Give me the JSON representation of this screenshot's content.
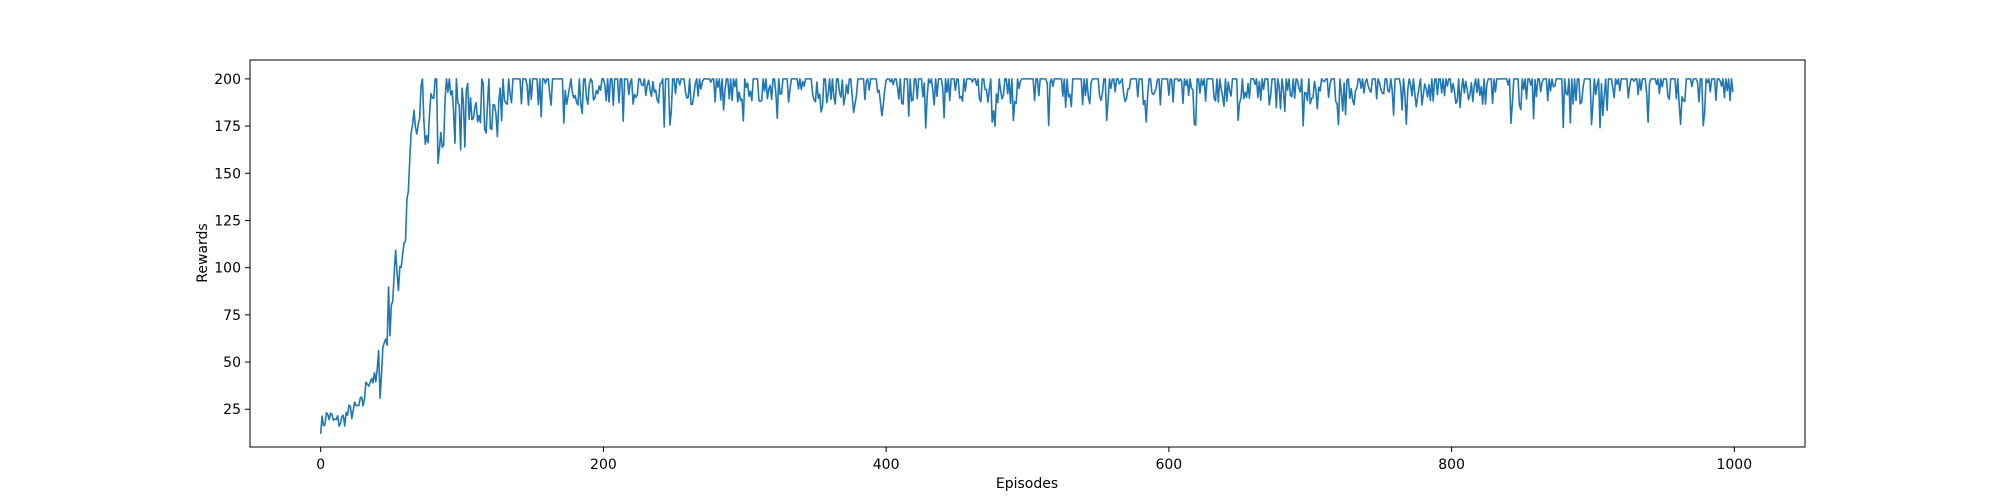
{
  "chart_data": {
    "type": "line",
    "title": "",
    "xlabel": "Episodes",
    "ylabel": "Rewards",
    "xlim": [
      -50,
      1050
    ],
    "ylim": [
      5,
      210
    ],
    "xticks": [
      0,
      200,
      400,
      600,
      800,
      1000
    ],
    "yticks": [
      25,
      50,
      75,
      100,
      125,
      150,
      175,
      200
    ],
    "grid": false,
    "legend": "none",
    "line_color": "#1f77b4",
    "series": [
      {
        "name": "Rewards",
        "anchors_x": [
          0,
          5,
          10,
          15,
          20,
          25,
          30,
          33,
          36,
          40,
          45,
          50,
          55,
          60,
          62,
          65,
          70,
          75,
          80,
          85,
          90,
          95,
          100,
          110,
          120,
          130,
          140,
          150,
          200,
          300,
          400,
          500,
          600,
          700,
          800,
          900,
          1000
        ],
        "anchors_y": [
          16,
          22,
          18,
          19,
          23,
          25,
          28,
          40,
          42,
          38,
          60,
          85,
          100,
          120,
          150,
          175,
          183,
          180,
          175,
          172,
          178,
          176,
          180,
          183,
          185,
          188,
          193,
          196,
          195,
          195,
          195,
          195,
          195,
          195,
          195,
          195,
          190
        ],
        "x_range": [
          0,
          999
        ],
        "y_max": 200,
        "note": "Noisy per-episode reward curve rising from ~15 to ~200 by episode ~130, then oscillating between ~175 and 200."
      }
    ]
  }
}
